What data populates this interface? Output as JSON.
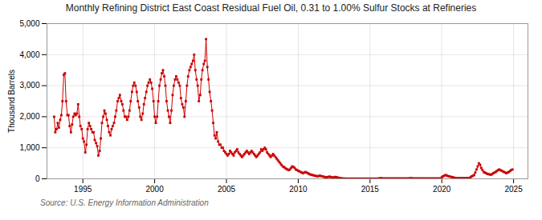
{
  "chart_data": {
    "type": "line",
    "title": "Monthly Refining District East Coast Residual Fuel Oil, 0.31 to 1.00% Sulfur Stocks at Refineries",
    "ylabel": "Thousand Barrels",
    "source": "Source: U.S. Energy Information Administration",
    "color": "#cc0000",
    "marker": "square",
    "grid": true,
    "xlim": [
      1992.5,
      2026.0
    ],
    "xticks": [
      1995,
      2000,
      2005,
      2010,
      2015,
      2020,
      2025
    ],
    "ylim": [
      0,
      5000
    ],
    "yticks": [
      0,
      {
        "value": 1000,
        "label": "1,000"
      },
      {
        "value": 2000,
        "label": "2,000"
      },
      {
        "value": 3000,
        "label": "3,000"
      },
      {
        "value": 4000,
        "label": "4,000"
      },
      {
        "value": 5000,
        "label": "5,000"
      }
    ],
    "x": [
      1993.0,
      1993.08,
      1993.17,
      1993.25,
      1993.33,
      1993.42,
      1993.5,
      1993.58,
      1993.67,
      1993.75,
      1993.83,
      1993.92,
      1994.0,
      1994.08,
      1994.17,
      1994.25,
      1994.33,
      1994.42,
      1994.5,
      1994.58,
      1994.67,
      1994.75,
      1994.83,
      1994.92,
      1995.0,
      1995.08,
      1995.17,
      1995.25,
      1995.33,
      1995.42,
      1995.5,
      1995.58,
      1995.67,
      1995.75,
      1995.83,
      1995.92,
      1996.0,
      1996.08,
      1996.17,
      1996.25,
      1996.33,
      1996.42,
      1996.5,
      1996.58,
      1996.67,
      1996.75,
      1996.83,
      1996.92,
      1997.0,
      1997.08,
      1997.17,
      1997.25,
      1997.33,
      1997.42,
      1997.5,
      1997.58,
      1997.67,
      1997.75,
      1997.83,
      1997.92,
      1998.0,
      1998.08,
      1998.17,
      1998.25,
      1998.33,
      1998.42,
      1998.5,
      1998.58,
      1998.67,
      1998.75,
      1998.83,
      1998.92,
      1999.0,
      1999.08,
      1999.17,
      1999.25,
      1999.33,
      1999.42,
      1999.5,
      1999.58,
      1999.67,
      1999.75,
      1999.83,
      1999.92,
      2000.0,
      2000.08,
      2000.17,
      2000.25,
      2000.33,
      2000.42,
      2000.5,
      2000.58,
      2000.67,
      2000.75,
      2000.83,
      2000.92,
      2001.0,
      2001.08,
      2001.17,
      2001.25,
      2001.33,
      2001.42,
      2001.5,
      2001.58,
      2001.67,
      2001.75,
      2001.83,
      2001.92,
      2002.0,
      2002.08,
      2002.17,
      2002.25,
      2002.33,
      2002.42,
      2002.5,
      2002.58,
      2002.67,
      2002.75,
      2002.83,
      2002.92,
      2003.0,
      2003.08,
      2003.17,
      2003.25,
      2003.33,
      2003.42,
      2003.5,
      2003.58,
      2003.67,
      2003.75,
      2003.83,
      2003.92,
      2004.0,
      2004.08,
      2004.17,
      2004.25,
      2004.33,
      2004.42,
      2004.5,
      2004.58,
      2004.67,
      2004.75,
      2004.83,
      2004.92,
      2005.0,
      2005.08,
      2005.17,
      2005.25,
      2005.33,
      2005.42,
      2005.5,
      2005.58,
      2005.67,
      2005.75,
      2005.83,
      2005.92,
      2006.0,
      2006.08,
      2006.17,
      2006.25,
      2006.33,
      2006.42,
      2006.5,
      2006.58,
      2006.67,
      2006.75,
      2006.83,
      2006.92,
      2007.0,
      2007.08,
      2007.17,
      2007.25,
      2007.33,
      2007.42,
      2007.5,
      2007.58,
      2007.67,
      2007.75,
      2007.83,
      2007.92,
      2008.0,
      2008.08,
      2008.17,
      2008.25,
      2008.33,
      2008.42,
      2008.5,
      2008.58,
      2008.67,
      2008.75,
      2008.83,
      2008.92,
      2009.0,
      2009.08,
      2009.17,
      2009.25,
      2009.33,
      2009.42,
      2009.5,
      2009.58,
      2009.67,
      2009.75,
      2009.83,
      2009.92,
      2010.0,
      2010.08,
      2010.17,
      2010.25,
      2010.33,
      2010.42,
      2010.5,
      2010.58,
      2010.67,
      2010.75,
      2010.83,
      2010.92,
      2011.0,
      2011.08,
      2011.17,
      2011.25,
      2011.33,
      2011.42,
      2011.5,
      2011.58,
      2011.67,
      2011.75,
      2011.83,
      2011.92,
      2012.0,
      2012.08,
      2012.17,
      2012.25,
      2012.33,
      2012.42,
      2012.5,
      2012.58,
      2012.67,
      2012.75,
      2012.83,
      2012.92,
      2013.0,
      2013.08,
      2013.17,
      2013.25,
      2013.33,
      2013.42,
      2013.5,
      2013.58,
      2013.67,
      2013.75,
      2013.83,
      2013.92,
      2014.0,
      2014.08,
      2014.17,
      2014.25,
      2014.33,
      2014.42,
      2014.5,
      2014.58,
      2014.67,
      2014.75,
      2014.83,
      2014.92,
      2015.0,
      2015.08,
      2015.17,
      2015.25,
      2015.33,
      2015.42,
      2015.5,
      2015.58,
      2015.67,
      2015.75,
      2015.83,
      2015.92,
      2016.0,
      2016.08,
      2016.17,
      2016.25,
      2016.33,
      2016.42,
      2016.5,
      2016.58,
      2016.67,
      2016.75,
      2016.83,
      2016.92,
      2017.0,
      2017.08,
      2017.17,
      2017.25,
      2017.33,
      2017.42,
      2017.5,
      2017.58,
      2017.67,
      2017.75,
      2017.83,
      2017.92,
      2018.0,
      2018.08,
      2018.17,
      2018.25,
      2018.33,
      2018.42,
      2018.5,
      2018.58,
      2018.67,
      2018.75,
      2018.83,
      2018.92,
      2019.0,
      2019.08,
      2019.17,
      2019.25,
      2019.33,
      2019.42,
      2019.5,
      2019.58,
      2019.67,
      2019.75,
      2019.83,
      2019.92,
      2020.0,
      2020.08,
      2020.17,
      2020.25,
      2020.33,
      2020.42,
      2020.5,
      2020.58,
      2020.67,
      2020.75,
      2020.83,
      2020.92,
      2021.0,
      2021.08,
      2021.17,
      2021.25,
      2021.33,
      2021.42,
      2021.5,
      2021.58,
      2021.67,
      2021.75,
      2021.83,
      2021.92,
      2022.0,
      2022.08,
      2022.17,
      2022.25,
      2022.33,
      2022.42,
      2022.5,
      2022.58,
      2022.67,
      2022.75,
      2022.83,
      2022.92,
      2023.0,
      2023.08,
      2023.17,
      2023.25,
      2023.33,
      2023.42,
      2023.5,
      2023.58,
      2023.67,
      2023.75,
      2023.83,
      2023.92,
      2024.0,
      2024.08,
      2024.17,
      2024.25,
      2024.33,
      2024.42,
      2024.5,
      2024.58,
      2024.67,
      2024.75,
      2024.83,
      2024.92
    ],
    "values": [
      2000,
      1500,
      1600,
      1800,
      1650,
      1900,
      2050,
      2500,
      3350,
      3400,
      2500,
      2050,
      2050,
      1700,
      1500,
      1750,
      2000,
      2100,
      2050,
      2100,
      2400,
      2000,
      1700,
      1600,
      1300,
      1200,
      850,
      1100,
      1600,
      1800,
      1700,
      1600,
      1500,
      1500,
      1250,
      1150,
      1050,
      750,
      900,
      1300,
      1800,
      2000,
      2200,
      2100,
      1900,
      1700,
      1500,
      1400,
      1600,
      1700,
      1800,
      2000,
      2200,
      2500,
      2600,
      2700,
      2500,
      2400,
      2200,
      2000,
      2000,
      1900,
      2000,
      2200,
      2500,
      2800,
      3000,
      3100,
      3000,
      2800,
      2500,
      2300,
      2000,
      1900,
      2100,
      2400,
      2600,
      2800,
      3000,
      3100,
      3200,
      3100,
      2900,
      2500,
      2000,
      1800,
      2000,
      2500,
      3000,
      3200,
      3400,
      3500,
      3300,
      3000,
      2500,
      2200,
      2000,
      1800,
      2200,
      2700,
      3000,
      3200,
      3300,
      3200,
      3100,
      3000,
      2600,
      2400,
      2300,
      2000,
      2500,
      3000,
      3300,
      3500,
      3600,
      3700,
      3800,
      4000,
      3500,
      3200,
      3000,
      2500,
      2700,
      3200,
      3500,
      3700,
      3800,
      4500,
      3600,
      3200,
      2800,
      2500,
      2200,
      1800,
      1400,
      1300,
      1500,
      1200,
      1100,
      1100,
      1000,
      1000,
      900,
      850,
      800,
      750,
      800,
      900,
      850,
      800,
      750,
      850,
      900,
      950,
      850,
      800,
      750,
      700,
      750,
      800,
      850,
      900,
      850,
      800,
      850,
      900,
      850,
      800,
      750,
      700,
      750,
      800,
      850,
      950,
      900,
      950,
      1000,
      950,
      850,
      800,
      750,
      700,
      750,
      800,
      750,
      700,
      650,
      600,
      550,
      500,
      450,
      400,
      380,
      350,
      320,
      300,
      280,
      300,
      350,
      400,
      380,
      350,
      300,
      280,
      260,
      240,
      220,
      200,
      180,
      200,
      220,
      200,
      180,
      160,
      140,
      130,
      120,
      110,
      100,
      90,
      80,
      90,
      100,
      90,
      80,
      70,
      60,
      50,
      50,
      60,
      70,
      60,
      50,
      40,
      50,
      60,
      50,
      40,
      30,
      20,
      15,
      10,
      8,
      6,
      5,
      5,
      5,
      5,
      5,
      5,
      5,
      5,
      5,
      5,
      5,
      5,
      5,
      5,
      5,
      5,
      5,
      5,
      5,
      5,
      5,
      5,
      5,
      5,
      5,
      5,
      5,
      10,
      15,
      20,
      15,
      10,
      10,
      10,
      10,
      10,
      10,
      10,
      10,
      10,
      10,
      10,
      10,
      10,
      10,
      10,
      10,
      10,
      10,
      10,
      10,
      10,
      10,
      15,
      20,
      15,
      10,
      10,
      10,
      10,
      10,
      10,
      10,
      10,
      10,
      10,
      10,
      10,
      10,
      10,
      10,
      10,
      10,
      10,
      10,
      10,
      10,
      10,
      10,
      10,
      50,
      80,
      100,
      120,
      110,
      90,
      80,
      70,
      60,
      50,
      40,
      30,
      20,
      20,
      20,
      20,
      20,
      20,
      20,
      20,
      20,
      20,
      20,
      20,
      50,
      80,
      100,
      120,
      200,
      300,
      400,
      500,
      450,
      350,
      280,
      220,
      200,
      180,
      160,
      150,
      140,
      130,
      150,
      180,
      200,
      220,
      250,
      280,
      300,
      280,
      260,
      240,
      220,
      200,
      180,
      200,
      220,
      250,
      280,
      300
    ]
  }
}
